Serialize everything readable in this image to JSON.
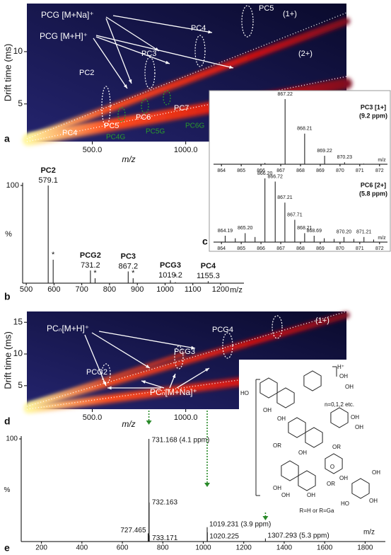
{
  "chart_data": [
    {
      "panel": "a",
      "type": "heatmap",
      "xlabel": "m/z",
      "ylabel": "Drift time (ms)",
      "xlim": [
        150,
        1860
      ],
      "ylim": [
        1.4,
        14.6
      ],
      "xticks": [
        {
          "value": 500,
          "label": "500.0"
        },
        {
          "value": 1000,
          "label": "1000.0"
        }
      ],
      "yticks": [
        5,
        10
      ],
      "annotations": [
        "PCG [M+Na]⁺",
        "PCG [M+H]⁺",
        "PC2",
        "PC3",
        "PC4",
        "PC5",
        "(1+)",
        "(2+)",
        "PC4",
        "PC5",
        "PC6",
        "PC7",
        "PC4G",
        "PC5G",
        "PC6G"
      ]
    },
    {
      "panel": "b",
      "type": "stick",
      "xlabel": "m/z",
      "ylabel": "%",
      "xlim": [
        487,
        1284
      ],
      "ylim": [
        0,
        100
      ],
      "xticks": [
        500,
        600,
        700,
        800,
        900,
        1000,
        1100,
        1200
      ],
      "yticks": [
        100
      ],
      "x": [
        579.1,
        597,
        731.2,
        748,
        867.2,
        885,
        1019.2,
        1037,
        1155.3
      ],
      "values": [
        100,
        24,
        13,
        5,
        12,
        5,
        3,
        1,
        2
      ],
      "names": [
        "PC2",
        null,
        "PCG2",
        null,
        "PC3",
        null,
        "PCG3",
        null,
        "PC4"
      ],
      "labels": [
        "579.1",
        "*",
        "731.2",
        "*",
        "867.2",
        "*",
        "1019.2",
        "*",
        "1155.3"
      ]
    },
    {
      "type": "stick",
      "title": "PC3 [1+]",
      "subtitle": "(9.2 ppm)",
      "xlabel": "m/z",
      "xlim": [
        863.6,
        872.4
      ],
      "ylim": [
        0,
        100
      ],
      "xticks": [
        864,
        865,
        866,
        867,
        868,
        869,
        870,
        871,
        872
      ],
      "x": [
        866.2,
        867.22,
        868.21,
        869.22,
        870.23,
        871.2
      ],
      "values": [
        2,
        100,
        47,
        13,
        3,
        1
      ],
      "labels": [
        null,
        "867.22",
        "868.21",
        "869.22",
        "870.23",
        null
      ]
    },
    {
      "panel": "c",
      "type": "stick",
      "title": "PC6 [2+]",
      "subtitle": "(5.8 ppm)",
      "xlabel": "m/z",
      "xlim": [
        863.6,
        872.4
      ],
      "ylim": [
        0,
        100
      ],
      "xticks": [
        864,
        865,
        866,
        867,
        868,
        869,
        870,
        871,
        872
      ],
      "x": [
        864.19,
        864.7,
        865.2,
        865.7,
        866.2,
        866.72,
        867.21,
        867.71,
        868.21,
        868.69,
        869.2,
        869.7,
        870.2,
        870.7,
        871.21,
        871.7
      ],
      "values": [
        10,
        6,
        14,
        8,
        100,
        95,
        62,
        35,
        14,
        10,
        6,
        5,
        8,
        5,
        8,
        4
      ],
      "labels": [
        "864.19",
        null,
        "865.20",
        null,
        "866.20",
        "866.72",
        "867.21",
        "867.71",
        "868.21",
        "868.69",
        null,
        null,
        "870.20",
        null,
        "871.21",
        null
      ]
    },
    {
      "panel": "d",
      "type": "heatmap",
      "xlabel": "m/z",
      "ylabel": "Drift time (ms)",
      "xlim": [
        150,
        1860
      ],
      "ylim": [
        1.3,
        16.7
      ],
      "xticks": [
        {
          "value": 500,
          "label": "500.0"
        },
        {
          "value": 1000,
          "label": "1000.0"
        }
      ],
      "yticks": [
        5,
        10,
        15
      ],
      "annotations": [
        "PCₙ[M+H]⁺",
        "PCG4",
        "PCG3",
        "PCG2",
        "(1+)",
        "PCₙ[M+Na]⁺"
      ]
    },
    {
      "panel": "e",
      "type": "stick",
      "xlabel": "m/z",
      "ylabel": "%",
      "xlim": [
        100,
        1900
      ],
      "ylim": [
        0,
        100
      ],
      "xticks": [
        200,
        400,
        600,
        800,
        1000,
        1200,
        1400,
        1600,
        1800
      ],
      "yticks": [
        100
      ],
      "x": [
        727.465,
        731.168,
        732.163,
        733.171,
        1019.231,
        1020.225,
        1307.293
      ],
      "values": [
        8,
        100,
        38,
        6,
        14,
        9,
        3
      ],
      "labels": [
        "727.465",
        "731.168 (4.1 ppm)",
        "732.163",
        "733.171",
        "1019.231 (3.9 ppm)",
        "1020.225",
        "1307.293 (5.3 ppm)"
      ]
    }
  ],
  "structure": {
    "texts": [
      "H⁺",
      "n=0,1,2 etc.",
      "HO",
      "OH",
      "OH",
      "OH",
      "OH",
      "OH",
      "OH",
      "OR",
      "OH",
      "OR",
      "OH",
      "OH",
      "OH",
      "OR",
      "OH",
      "R=H or R=Ga",
      "O",
      "OH",
      "HO",
      "OH"
    ]
  }
}
